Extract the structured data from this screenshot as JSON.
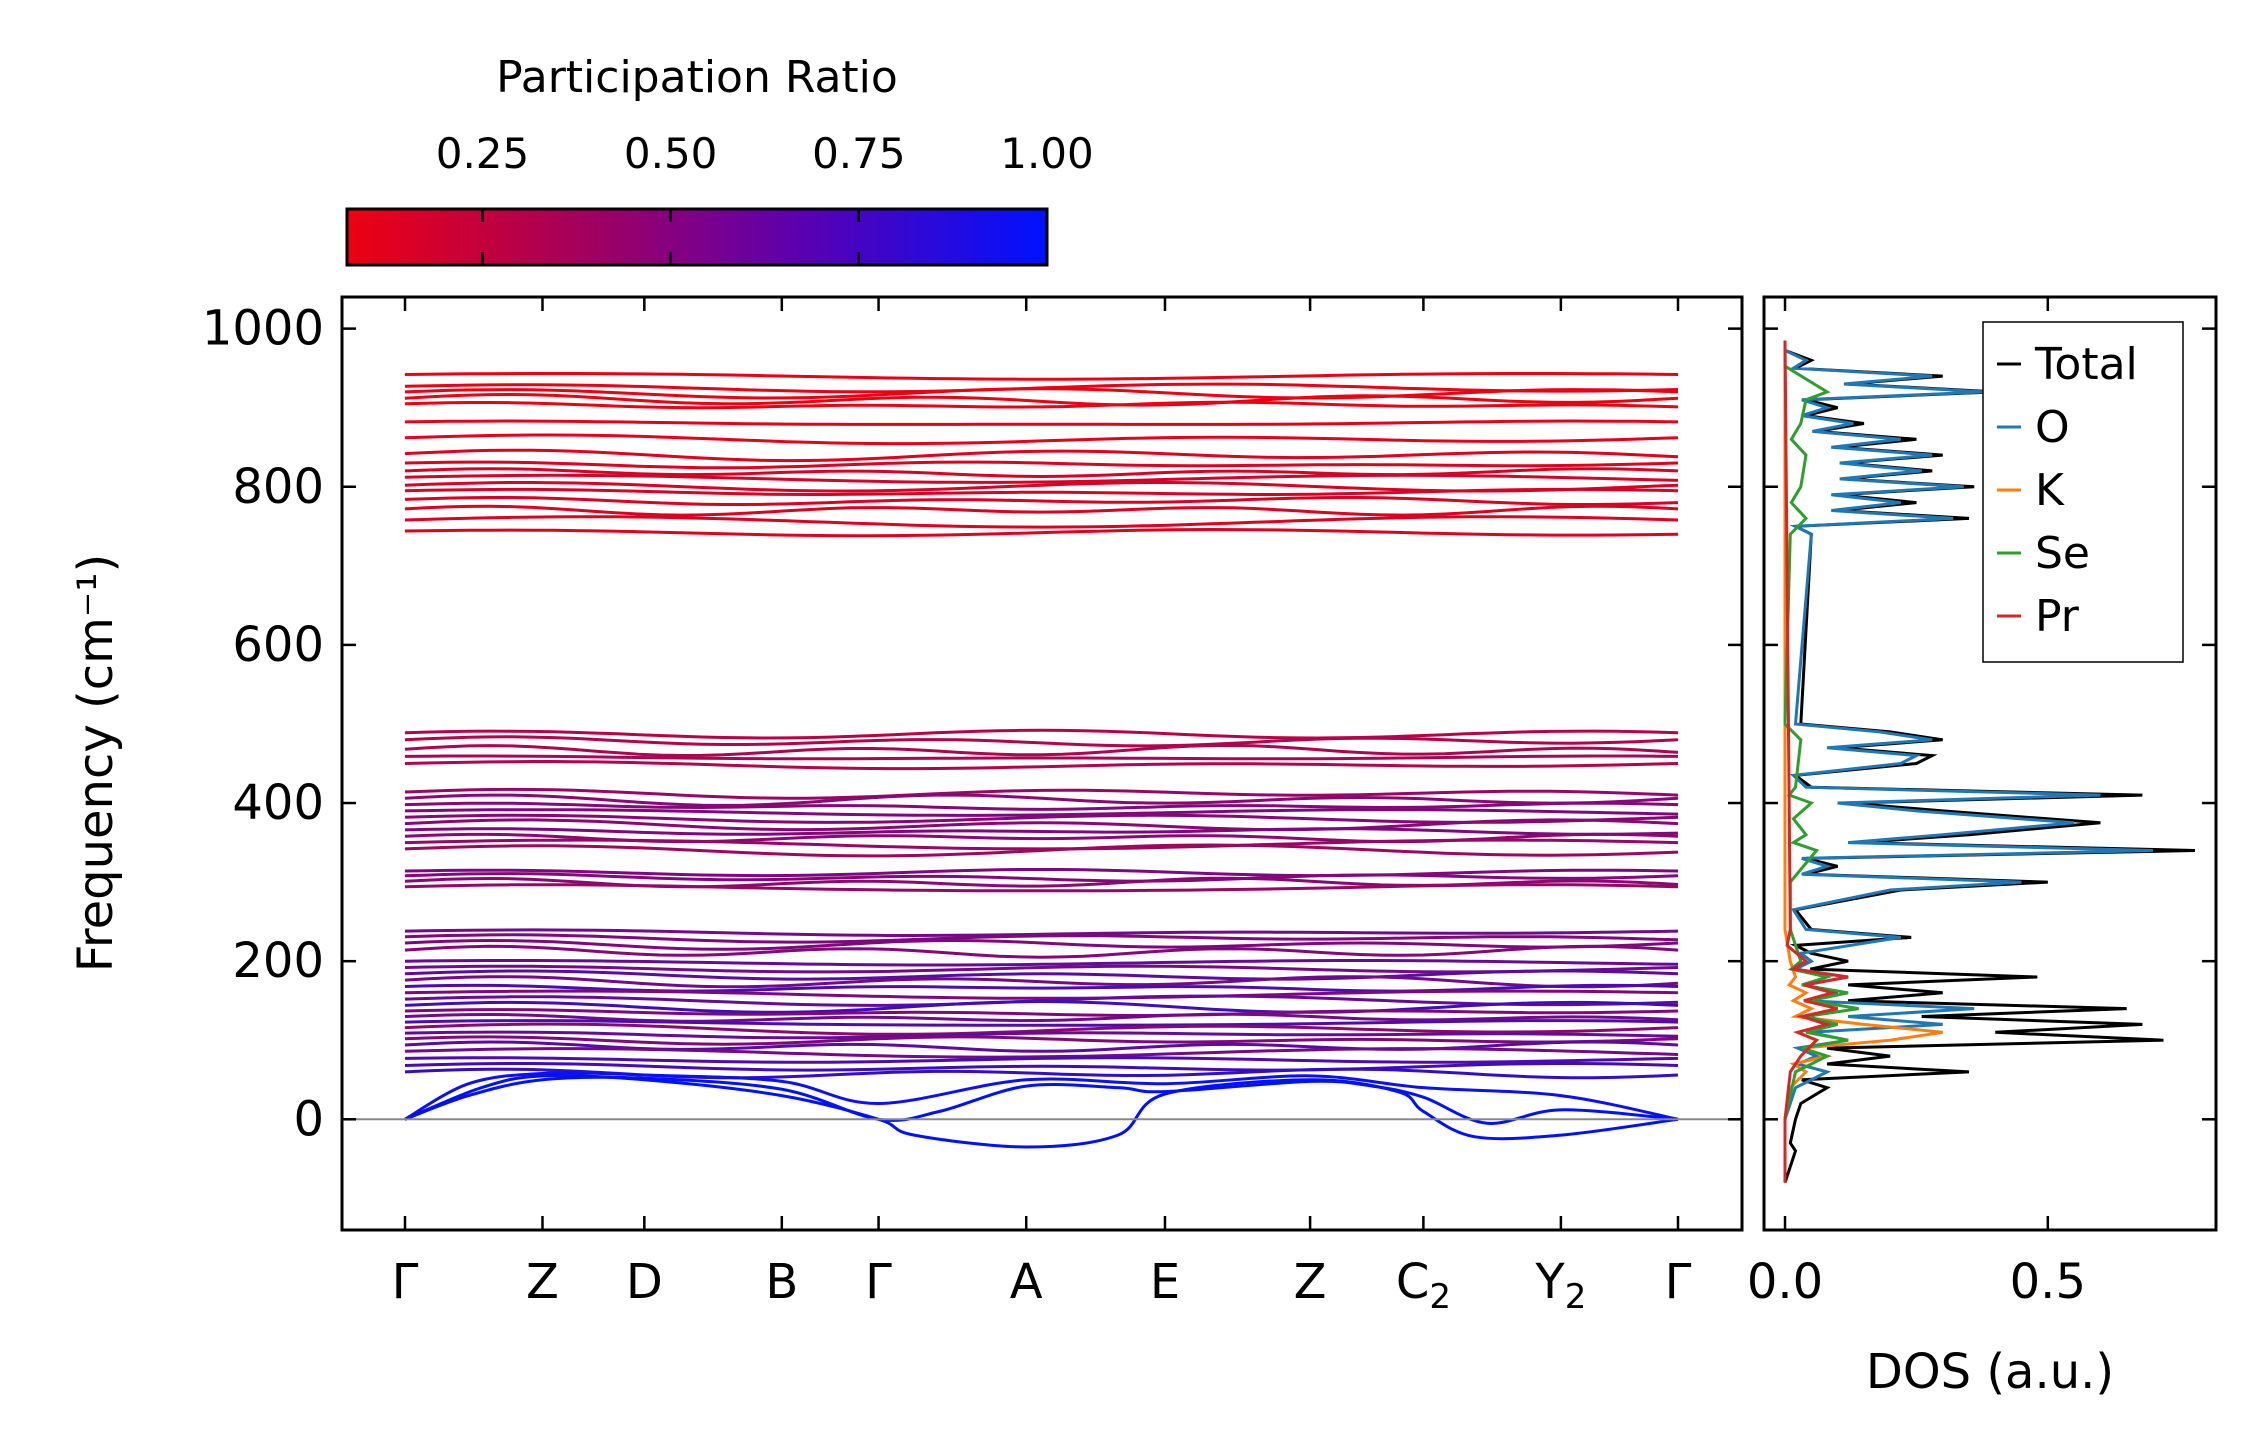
{
  "colorbar": {
    "title": "Participation Ratio",
    "ticks": [
      "0.25",
      "0.50",
      "0.75",
      "1.00"
    ],
    "tick_values": [
      0.25,
      0.5,
      0.75,
      1.0
    ],
    "range": [
      0.07,
      1.0
    ],
    "color_low": "#ee0011",
    "color_high": "#0011ff"
  },
  "chart_data": [
    {
      "type": "line",
      "name": "phonon-band-structure",
      "ylabel": "Frequency (cm⁻¹)",
      "ylim": [
        -140,
        1040
      ],
      "yticks": [
        "0",
        "200",
        "400",
        "600",
        "800",
        "1000"
      ],
      "ytick_values": [
        0,
        200,
        400,
        600,
        800,
        1000
      ],
      "xtick_labels": [
        "Γ",
        "Z",
        "D",
        "B",
        "Γ",
        "A",
        "E",
        "Z",
        "C",
        "Y",
        "Γ"
      ],
      "xtick_subscripts": [
        "",
        "",
        "",
        "",
        "",
        "",
        "",
        "",
        "2",
        "2",
        ""
      ],
      "xtick_positions": [
        0.0,
        0.108,
        0.188,
        0.296,
        0.372,
        0.488,
        0.597,
        0.711,
        0.8,
        0.908,
        1.0
      ],
      "zero_line": 0,
      "flat_bands": [
        {
          "f": 940,
          "pr": 0.08
        },
        {
          "f": 925,
          "pr": 0.08
        },
        {
          "f": 918,
          "pr": 0.07
        },
        {
          "f": 910,
          "pr": 0.07
        },
        {
          "f": 903,
          "pr": 0.08
        },
        {
          "f": 880,
          "pr": 0.1
        },
        {
          "f": 860,
          "pr": 0.1
        },
        {
          "f": 840,
          "pr": 0.12
        },
        {
          "f": 828,
          "pr": 0.13
        },
        {
          "f": 818,
          "pr": 0.15
        },
        {
          "f": 810,
          "pr": 0.16
        },
        {
          "f": 800,
          "pr": 0.15
        },
        {
          "f": 793,
          "pr": 0.15
        },
        {
          "f": 782,
          "pr": 0.14
        },
        {
          "f": 770,
          "pr": 0.13
        },
        {
          "f": 756,
          "pr": 0.13
        },
        {
          "f": 742,
          "pr": 0.12
        },
        {
          "f": 487,
          "pr": 0.28
        },
        {
          "f": 478,
          "pr": 0.3
        },
        {
          "f": 466,
          "pr": 0.32
        },
        {
          "f": 457,
          "pr": 0.33
        },
        {
          "f": 448,
          "pr": 0.3
        },
        {
          "f": 412,
          "pr": 0.4
        },
        {
          "f": 404,
          "pr": 0.45
        },
        {
          "f": 396,
          "pr": 0.48
        },
        {
          "f": 388,
          "pr": 0.5
        },
        {
          "f": 380,
          "pr": 0.47
        },
        {
          "f": 372,
          "pr": 0.45
        },
        {
          "f": 364,
          "pr": 0.5
        },
        {
          "f": 356,
          "pr": 0.45
        },
        {
          "f": 348,
          "pr": 0.4
        },
        {
          "f": 340,
          "pr": 0.38
        },
        {
          "f": 312,
          "pr": 0.5
        },
        {
          "f": 306,
          "pr": 0.48
        },
        {
          "f": 299,
          "pr": 0.45
        },
        {
          "f": 292,
          "pr": 0.4
        },
        {
          "f": 236,
          "pr": 0.55
        },
        {
          "f": 229,
          "pr": 0.5
        },
        {
          "f": 221,
          "pr": 0.5
        },
        {
          "f": 212,
          "pr": 0.48
        },
        {
          "f": 198,
          "pr": 0.6
        },
        {
          "f": 190,
          "pr": 0.55
        },
        {
          "f": 182,
          "pr": 0.65
        },
        {
          "f": 174,
          "pr": 0.55
        },
        {
          "f": 166,
          "pr": 0.7
        },
        {
          "f": 158,
          "pr": 0.5
        },
        {
          "f": 150,
          "pr": 0.6
        },
        {
          "f": 142,
          "pr": 0.75
        },
        {
          "f": 135,
          "pr": 0.5
        },
        {
          "f": 128,
          "pr": 0.55
        },
        {
          "f": 121,
          "pr": 0.7
        },
        {
          "f": 114,
          "pr": 0.45
        },
        {
          "f": 107,
          "pr": 0.6
        },
        {
          "f": 100,
          "pr": 0.5
        },
        {
          "f": 92,
          "pr": 0.65
        },
        {
          "f": 84,
          "pr": 0.55
        },
        {
          "f": 75,
          "pr": 0.7
        },
        {
          "f": 66,
          "pr": 0.75
        },
        {
          "f": 58,
          "pr": 0.8
        }
      ],
      "acoustic_bands": [
        {
          "pr": 1.0,
          "x": [
            0,
            0.05,
            0.108,
            0.188,
            0.296,
            0.372,
            0.42,
            0.488,
            0.56,
            0.597,
            0.711,
            0.76,
            0.8,
            0.85,
            0.908,
            1.0
          ],
          "f": [
            0,
            30,
            50,
            52,
            38,
            0,
            10,
            42,
            40,
            35,
            48,
            42,
            28,
            -5,
            12,
            0
          ]
        },
        {
          "pr": 1.0,
          "x": [
            0,
            0.06,
            0.108,
            0.188,
            0.296,
            0.372,
            0.4,
            0.488,
            0.56,
            0.597,
            0.711,
            0.78,
            0.8,
            0.84,
            0.908,
            1.0
          ],
          "f": [
            0,
            40,
            55,
            50,
            30,
            0,
            -20,
            -35,
            -20,
            32,
            50,
            35,
            10,
            -22,
            -20,
            0
          ]
        },
        {
          "pr": 0.95,
          "x": [
            0,
            0.05,
            0.108,
            0.188,
            0.296,
            0.372,
            0.488,
            0.597,
            0.711,
            0.8,
            0.908,
            1.0
          ],
          "f": [
            0,
            45,
            58,
            56,
            48,
            20,
            50,
            45,
            55,
            40,
            30,
            0
          ]
        }
      ]
    },
    {
      "type": "line",
      "name": "dos",
      "xlabel": "DOS (a.u.)",
      "xlim": [
        -0.04,
        0.82
      ],
      "xticks": [
        "0.0",
        "0.5"
      ],
      "xtick_values": [
        0.0,
        0.5
      ],
      "ylim": [
        -140,
        1040
      ],
      "series": [
        {
          "name": "Total",
          "color": "#000000",
          "f": [
            -80,
            -40,
            -30,
            0,
            20,
            40,
            60,
            80,
            100,
            110,
            120,
            140,
            160,
            180,
            200,
            210,
            230,
            240,
            290,
            300,
            320,
            340,
            360,
            375,
            390,
            410,
            420,
            450,
            460,
            470,
            480,
            490,
            500,
            740,
            760,
            780,
            800,
            820,
            840,
            860,
            880,
            900,
            920,
            940,
            960,
            985
          ],
          "v": [
            0,
            0.02,
            0.01,
            0.02,
            0.03,
            0.08,
            0.35,
            0.2,
            0.72,
            0.4,
            0.68,
            0.65,
            0.3,
            0.48,
            0.12,
            0.05,
            0.24,
            0.05,
            0.22,
            0.5,
            0.1,
            0.78,
            0.35,
            0.6,
            0.3,
            0.68,
            0.05,
            0.25,
            0.28,
            0.1,
            0.3,
            0.2,
            0.03,
            0.05,
            0.35,
            0.25,
            0.36,
            0.28,
            0.3,
            0.25,
            0.15,
            0.1,
            0.4,
            0.3,
            0.05,
            0
          ]
        },
        {
          "name": "O",
          "color": "#1f77b4",
          "f": [
            -80,
            0,
            40,
            60,
            80,
            100,
            120,
            140,
            160,
            180,
            200,
            210,
            230,
            240,
            290,
            300,
            320,
            340,
            360,
            375,
            390,
            410,
            420,
            450,
            460,
            470,
            480,
            490,
            500,
            740,
            760,
            780,
            800,
            820,
            840,
            860,
            880,
            900,
            920,
            940,
            960,
            985
          ],
          "v": [
            0,
            0,
            0.02,
            0.08,
            0.06,
            0.12,
            0.3,
            0.36,
            0.1,
            0.12,
            0.05,
            0.03,
            0.22,
            0.04,
            0.2,
            0.45,
            0.08,
            0.7,
            0.3,
            0.55,
            0.25,
            0.6,
            0.04,
            0.22,
            0.25,
            0.08,
            0.28,
            0.18,
            0.02,
            0.05,
            0.32,
            0.22,
            0.34,
            0.26,
            0.28,
            0.22,
            0.13,
            0.08,
            0.38,
            0.28,
            0.04,
            0
          ]
        },
        {
          "name": "K",
          "color": "#ff7f0e",
          "f": [
            -80,
            0,
            40,
            60,
            80,
            100,
            110,
            120,
            140,
            160,
            180,
            200,
            240,
            985
          ],
          "v": [
            0,
            0,
            0.01,
            0.04,
            0.08,
            0.2,
            0.3,
            0.15,
            0.05,
            0.04,
            0.02,
            0.01,
            0,
            0
          ]
        },
        {
          "name": "Se",
          "color": "#2ca02c",
          "f": [
            -80,
            0,
            60,
            80,
            100,
            120,
            140,
            160,
            180,
            200,
            240,
            300,
            340,
            360,
            400,
            420,
            480,
            500,
            740,
            760,
            800,
            840,
            880,
            910,
            920,
            985
          ],
          "v": [
            0,
            0,
            0.02,
            0.08,
            0.12,
            0.1,
            0.14,
            0.12,
            0.08,
            0.03,
            0.01,
            0.01,
            0.06,
            0.04,
            0.05,
            0.02,
            0.03,
            0,
            0.01,
            0.04,
            0.03,
            0.04,
            0.03,
            0.04,
            0.08,
            0
          ]
        },
        {
          "name": "Pr",
          "color": "#d62728",
          "f": [
            -80,
            0,
            60,
            80,
            100,
            120,
            140,
            160,
            180,
            200,
            240,
            985
          ],
          "v": [
            0,
            0,
            0.01,
            0.03,
            0.06,
            0.08,
            0.1,
            0.09,
            0.12,
            0.04,
            0.01,
            0
          ]
        }
      ]
    }
  ]
}
